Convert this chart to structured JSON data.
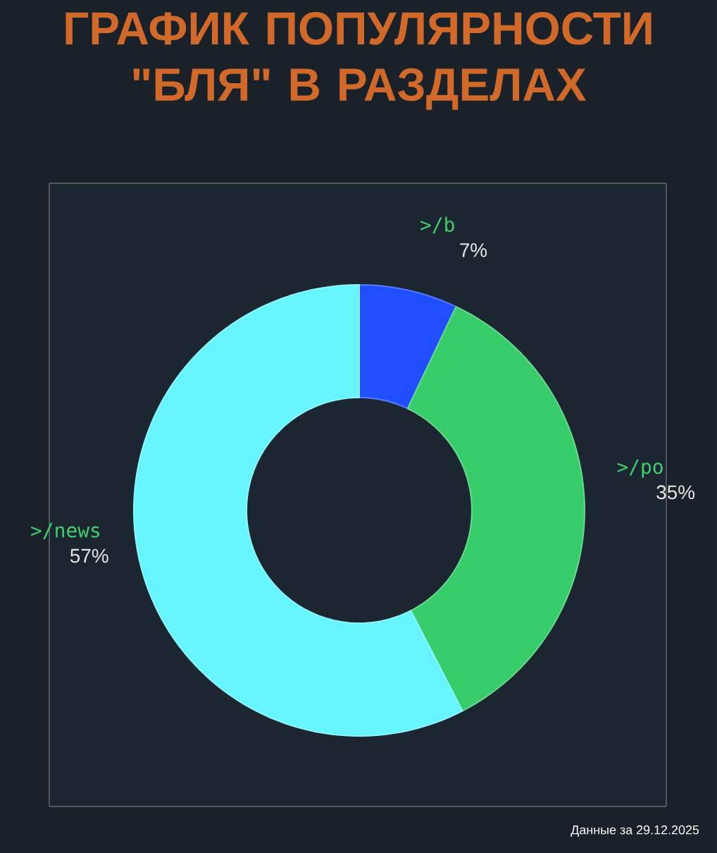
{
  "chart_data": {
    "type": "donut",
    "title": "ГРАФИК ПОПУЛЯРНОСТИ \"БЛЯ\" В РАЗДЕЛАХ",
    "categories": [
      ">/b",
      ">/po",
      ">/news"
    ],
    "values": [
      7,
      35,
      57
    ],
    "colors": [
      "#1f4fff",
      "#36cc6a",
      "#66f4ff"
    ],
    "value_labels": [
      "7%",
      "35%",
      "57%"
    ],
    "annotations": [
      "Данные за 29.12.2025"
    ]
  }
}
